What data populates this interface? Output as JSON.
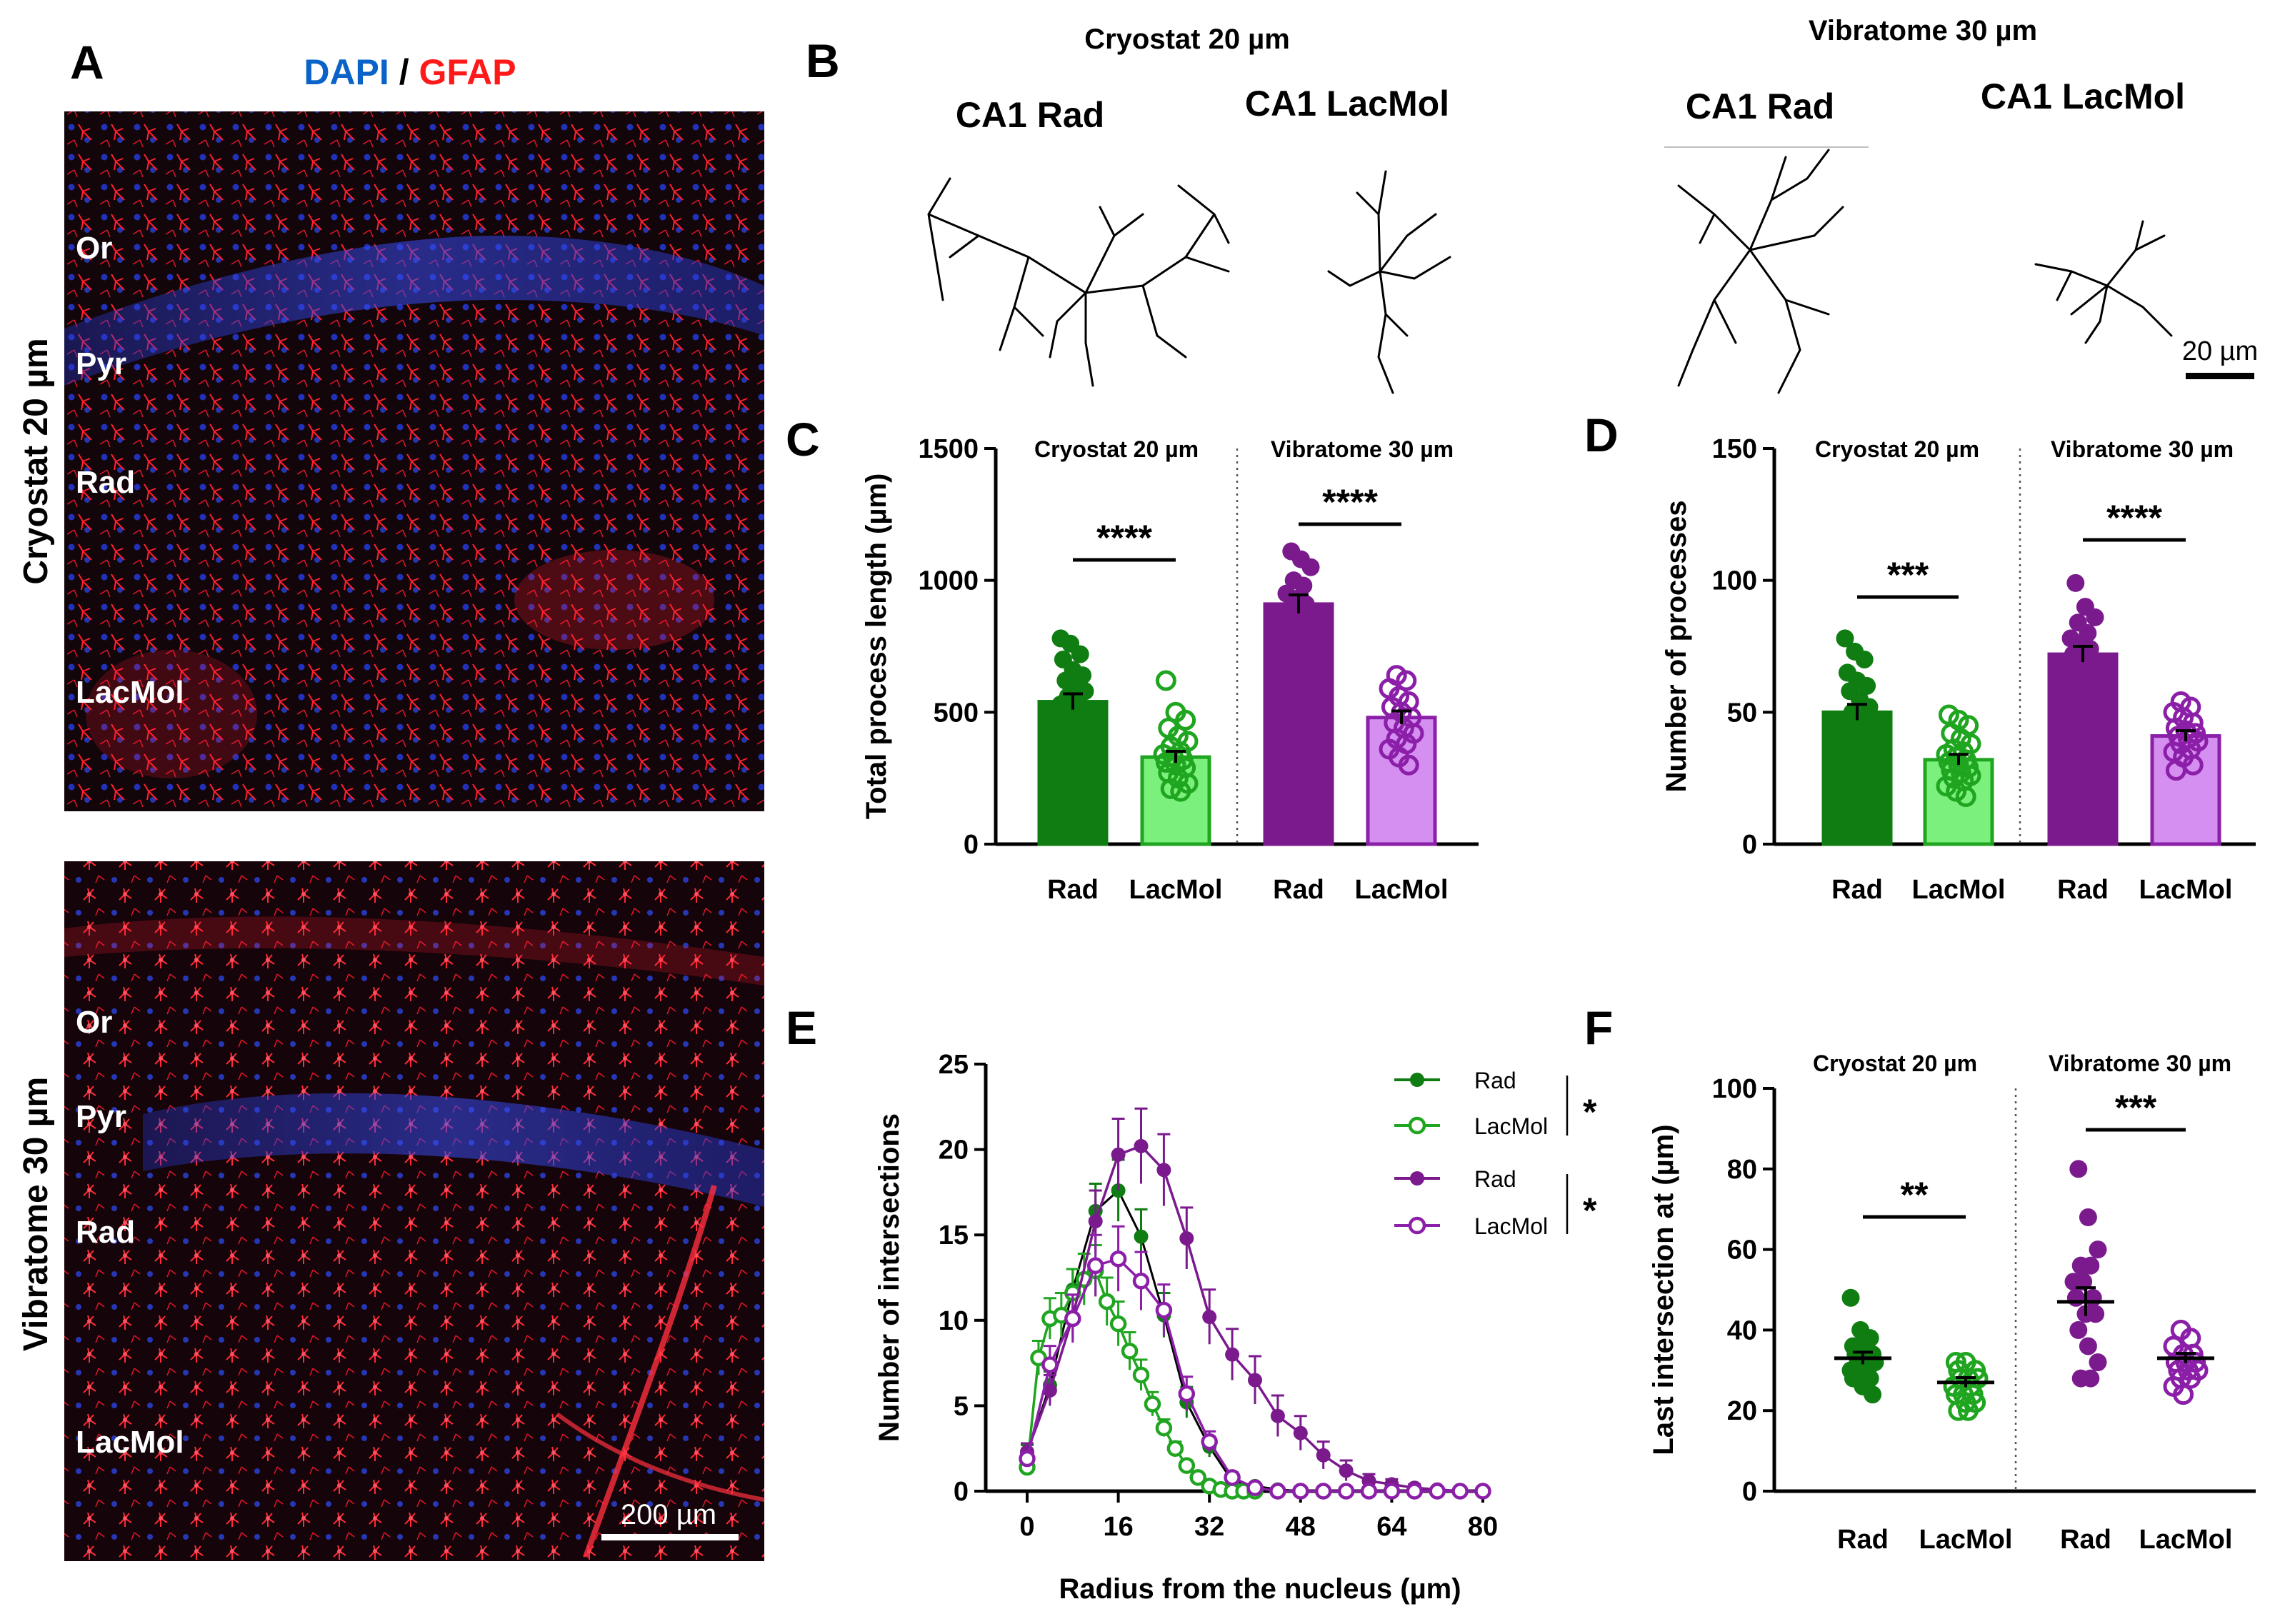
{
  "panels": {
    "A": "A",
    "B": "B",
    "C": "C",
    "D": "D",
    "E": "E",
    "F": "F"
  },
  "colors": {
    "rad_green": "#0f7d12",
    "lacmol_green_fill": "#7cf07c",
    "lacmol_green_stroke": "#1fa51f",
    "rad_purple": "#7a1a8d",
    "lacmol_purple_fill": "#d58ff0",
    "lacmol_purple_stroke": "#8b1fa8",
    "dapi": "#0a64c8",
    "gfap": "#ff1a1a"
  },
  "panel_a": {
    "stain_dapi": "DAPI",
    "stain_sep": " / ",
    "stain_gfap": "GFAP",
    "row_top_label": "Cryostat 20 µm",
    "row_bottom_label": "Vibratome 30 µm",
    "top_layers": [
      "Or",
      "Pyr",
      "Rad",
      "LacMol"
    ],
    "bottom_layers": [
      "Or",
      "Pyr",
      "Rad",
      "LacMol"
    ],
    "scalebar": "200 µm"
  },
  "panel_b": {
    "cryostat_title": "Cryostat 20 µm",
    "vibratome_title": "Vibratome 30 µm",
    "cell_labels": [
      "CA1 Rad",
      "CA1 LacMol",
      "CA1 Rad",
      "CA1 LacMol"
    ],
    "scalebar": "20 µm"
  },
  "chart_data": [
    {
      "panel": "C",
      "type": "bar",
      "ylabel": "Total process length (µm)",
      "ylim": [
        0,
        1500
      ],
      "yticks": [
        0,
        500,
        1000,
        1500
      ],
      "groups": [
        "Cryostat 20 µm",
        "Vibratome 30 µm"
      ],
      "categories": [
        "Rad",
        "LacMol",
        "Rad",
        "LacMol"
      ],
      "means": [
        540,
        330,
        910,
        480
      ],
      "sem": [
        30,
        22,
        35,
        25
      ],
      "significance": [
        {
          "label": "****",
          "pair": [
            0,
            1
          ]
        },
        {
          "label": "****",
          "pair": [
            2,
            3
          ]
        }
      ],
      "points": [
        [
          780,
          760,
          720,
          700,
          660,
          640,
          620,
          600,
          580,
          560,
          540,
          530,
          510,
          490,
          470,
          450,
          420,
          390,
          360,
          330
        ],
        [
          620,
          500,
          470,
          440,
          410,
          390,
          370,
          350,
          340,
          330,
          320,
          310,
          300,
          290,
          270,
          250,
          230,
          210,
          200
        ],
        [
          1110,
          1080,
          1050,
          1000,
          980,
          950,
          930,
          910,
          890,
          870,
          850,
          820,
          800,
          780,
          750
        ],
        [
          640,
          620,
          590,
          560,
          540,
          520,
          500,
          480,
          460,
          440,
          420,
          400,
          380,
          360,
          330,
          300
        ]
      ]
    },
    {
      "panel": "D",
      "type": "bar",
      "ylabel": "Number of processes",
      "ylim": [
        0,
        150
      ],
      "yticks": [
        0,
        50,
        100,
        150
      ],
      "groups": [
        "Cryostat 20 µm",
        "Vibratome 30 µm"
      ],
      "categories": [
        "Rad",
        "LacMol",
        "Rad",
        "LacMol"
      ],
      "means": [
        50,
        32,
        72,
        41
      ],
      "sem": [
        3,
        2,
        3,
        2
      ],
      "significance": [
        {
          "label": "***",
          "pair": [
            0,
            1
          ]
        },
        {
          "label": "****",
          "pair": [
            2,
            3
          ]
        }
      ],
      "points": [
        [
          78,
          73,
          70,
          65,
          62,
          60,
          58,
          55,
          52,
          50,
          48,
          46,
          44,
          42,
          40,
          38,
          35,
          32,
          30,
          28,
          25
        ],
        [
          49,
          47,
          45,
          42,
          40,
          38,
          36,
          35,
          34,
          33,
          32,
          31,
          30,
          29,
          28,
          27,
          26,
          25,
          24,
          22,
          20,
          18
        ],
        [
          99,
          90,
          86,
          84,
          80,
          78,
          76,
          74,
          72,
          70,
          68,
          66,
          64,
          62,
          60
        ],
        [
          54,
          52,
          50,
          48,
          46,
          44,
          43,
          42,
          41,
          40,
          39,
          38,
          36,
          35,
          33,
          30,
          28
        ]
      ]
    },
    {
      "panel": "E",
      "type": "line",
      "xlabel": "Radius from the nucleus (µm)",
      "ylabel": "Number of intersections",
      "xlim": [
        0,
        80
      ],
      "ylim": [
        0,
        25
      ],
      "xticks": [
        0,
        16,
        32,
        48,
        64,
        80
      ],
      "yticks": [
        0,
        5,
        10,
        15,
        20,
        25
      ],
      "x": [
        0,
        2,
        4,
        6,
        8,
        10,
        12,
        14,
        16,
        18,
        20,
        22,
        24,
        26,
        28,
        30,
        32,
        34,
        36,
        38,
        40,
        42,
        44,
        46,
        48,
        50,
        52,
        54,
        56,
        58,
        60,
        62,
        64,
        66,
        68,
        70,
        72,
        74,
        76,
        78,
        80
      ],
      "series": [
        {
          "name": "Rad",
          "style": "green-filled",
          "x": [
            0,
            4,
            8,
            12,
            16,
            20,
            24,
            28,
            32,
            36,
            40,
            44,
            48,
            52,
            56,
            60,
            64,
            68,
            72,
            76,
            80
          ],
          "y": [
            2.2,
            6.2,
            11.8,
            16.4,
            17.6,
            14.9,
            10.3,
            5.2,
            2.6,
            0.6,
            0.3,
            0.1,
            0,
            0,
            0,
            0,
            0,
            0,
            0,
            0,
            0
          ],
          "err": [
            0.5,
            0.8,
            1.2,
            1.6,
            1.8,
            1.6,
            1.3,
            0.9,
            0.6,
            0.2,
            0.1,
            0,
            0,
            0,
            0,
            0,
            0,
            0,
            0,
            0,
            0
          ]
        },
        {
          "name": "LacMol",
          "style": "green-open",
          "x": [
            0,
            2,
            4,
            6,
            8,
            10,
            12,
            14,
            16,
            18,
            20,
            22,
            24,
            26,
            28,
            30,
            32,
            34,
            36,
            38,
            40
          ],
          "y": [
            1.4,
            7.8,
            10.1,
            10.3,
            11.6,
            12.4,
            12.9,
            11.1,
            9.8,
            8.2,
            6.8,
            5.1,
            3.7,
            2.5,
            1.5,
            0.8,
            0.3,
            0.1,
            0,
            0,
            0
          ],
          "err": [
            0.4,
            1.0,
            1.2,
            1.3,
            1.4,
            1.5,
            1.5,
            1.4,
            1.3,
            1.1,
            0.9,
            0.7,
            0.5,
            0.4,
            0.3,
            0.2,
            0.1,
            0,
            0,
            0,
            0
          ]
        },
        {
          "name": "Rad",
          "style": "purple-filled",
          "x": [
            0,
            4,
            8,
            12,
            16,
            20,
            24,
            28,
            32,
            36,
            40,
            44,
            48,
            52,
            56,
            60,
            64,
            68,
            72,
            76,
            80
          ],
          "y": [
            2.3,
            5.9,
            10.2,
            15.8,
            19.7,
            20.2,
            18.8,
            14.8,
            10.2,
            8.0,
            6.5,
            4.4,
            3.4,
            2.1,
            1.2,
            0.6,
            0.4,
            0.2,
            0.1,
            0,
            0
          ],
          "err": [
            0.5,
            0.9,
            1.3,
            1.8,
            2.1,
            2.2,
            2.1,
            1.8,
            1.6,
            1.5,
            1.4,
            1.2,
            1.0,
            0.8,
            0.6,
            0.4,
            0.3,
            0.2,
            0.1,
            0,
            0
          ]
        },
        {
          "name": "LacMol",
          "style": "purple-open",
          "x": [
            0,
            4,
            8,
            12,
            16,
            20,
            24,
            28,
            32,
            36,
            40,
            44,
            48,
            52,
            56,
            60,
            64,
            68,
            72,
            76,
            80
          ],
          "y": [
            1.9,
            7.4,
            10.1,
            13.2,
            13.6,
            12.3,
            10.6,
            5.7,
            2.9,
            0.8,
            0.2,
            0,
            0,
            0,
            0,
            0,
            0,
            0,
            0,
            0,
            0
          ],
          "err": [
            0.4,
            1.1,
            1.4,
            1.8,
            1.9,
            1.7,
            1.5,
            1.0,
            0.6,
            0.3,
            0.1,
            0,
            0,
            0,
            0,
            0,
            0,
            0,
            0,
            0,
            0
          ]
        }
      ],
      "significance": [
        "*",
        "*"
      ]
    },
    {
      "panel": "F",
      "type": "scatter",
      "ylabel": "Last intersection at (µm)",
      "ylim": [
        0,
        100
      ],
      "yticks": [
        0,
        20,
        40,
        60,
        80,
        100
      ],
      "groups": [
        "Cryostat 20 µm",
        "Vibratome 30 µm"
      ],
      "categories": [
        "Rad",
        "LacMol",
        "Rad",
        "LacMol"
      ],
      "means": [
        33,
        27,
        47,
        33
      ],
      "sem": [
        1.5,
        1.2,
        3.5,
        1.2
      ],
      "significance": [
        {
          "label": "**",
          "pair": [
            0,
            1
          ]
        },
        {
          "label": "***",
          "pair": [
            2,
            3
          ]
        }
      ],
      "points": [
        [
          48,
          40,
          38,
          36,
          36,
          34,
          34,
          32,
          32,
          32,
          30,
          30,
          30,
          28,
          28,
          26,
          24
        ],
        [
          32,
          32,
          30,
          30,
          28,
          28,
          28,
          26,
          26,
          24,
          24,
          24,
          22,
          22,
          20,
          20
        ],
        [
          80,
          68,
          60,
          56,
          56,
          52,
          52,
          48,
          48,
          44,
          44,
          40,
          36,
          32,
          28,
          28
        ],
        [
          40,
          38,
          36,
          34,
          34,
          32,
          32,
          32,
          30,
          30,
          30,
          28,
          28,
          26,
          24
        ]
      ]
    }
  ]
}
